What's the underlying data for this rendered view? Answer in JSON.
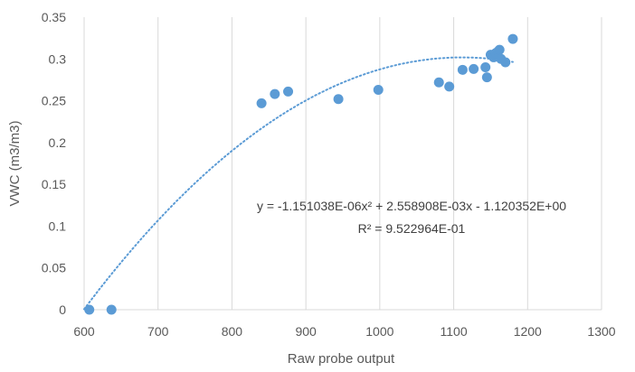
{
  "chart_data": {
    "type": "scatter",
    "title": "",
    "xlabel": "Raw probe output",
    "ylabel": "VWC (m3/m3)",
    "xlim": [
      600,
      1300
    ],
    "ylim": [
      0,
      0.35
    ],
    "x_ticks": [
      600,
      700,
      800,
      900,
      1000,
      1100,
      1200,
      1300
    ],
    "x_tick_labels": [
      "600",
      "700",
      "800",
      "900",
      "1000",
      "1100",
      "1200",
      "1300"
    ],
    "y_ticks": [
      0,
      0.05,
      0.1,
      0.15,
      0.2,
      0.25,
      0.3,
      0.35
    ],
    "y_tick_labels": [
      "0",
      "0.05",
      "0.1",
      "0.15",
      "0.2",
      "0.25",
      "0.3",
      "0.35"
    ],
    "grid": {
      "horizontal": false,
      "vertical": true
    },
    "legend": "none",
    "series": [
      {
        "marker_color": "#5b9bd5",
        "x": [
          607,
          637,
          840,
          858,
          876,
          944,
          998,
          1080,
          1094,
          1112,
          1127,
          1143,
          1145,
          1150,
          1154,
          1157,
          1160,
          1162,
          1164,
          1170,
          1180
        ],
        "y": [
          0.0,
          0.0,
          0.247,
          0.258,
          0.261,
          0.252,
          0.263,
          0.272,
          0.267,
          0.287,
          0.288,
          0.29,
          0.278,
          0.305,
          0.302,
          0.307,
          0.309,
          0.311,
          0.3,
          0.296,
          0.324
        ]
      }
    ],
    "trendline": {
      "type": "polynomial",
      "color": "#5b9bd5",
      "style": "dotted",
      "coefficients": {
        "a": -1.151038e-06,
        "b": 0.002558908,
        "c": -1.120352
      },
      "x_range": [
        600,
        1180
      ],
      "equation_text": "y = -1.151038E-06x² + 2.558908E-03x - 1.120352E+00",
      "r2_text": "R² = 9.522964E-01"
    }
  }
}
